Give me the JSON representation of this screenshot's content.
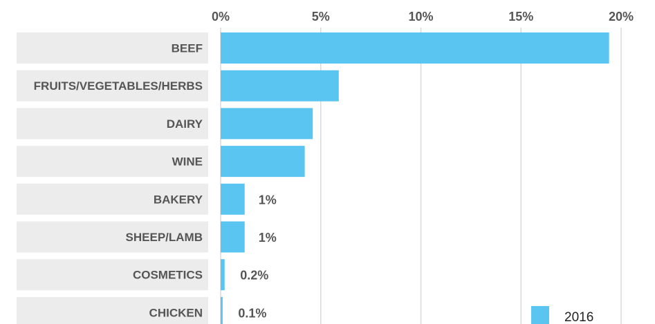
{
  "chart_data": {
    "type": "bar",
    "orientation": "horizontal",
    "categories": [
      "BEEF",
      "FRUITS/VEGETABLES/HERBS",
      "DAIRY",
      "WINE",
      "BAKERY",
      "SHEEP/LAMB",
      "COSMETICS",
      "CHICKEN"
    ],
    "series": [
      {
        "name": "2016",
        "values": [
          19.4,
          5.9,
          4.6,
          4.2,
          1.2,
          1.2,
          0.2,
          0.1
        ],
        "data_labels": [
          "",
          "",
          "",
          "",
          "1%",
          "1%",
          "0.2%",
          "0.1%"
        ]
      }
    ],
    "x_ticks": [
      0,
      5,
      10,
      15,
      20
    ],
    "x_tick_labels": [
      "0%",
      "5%",
      "10%",
      "15%",
      "20%"
    ],
    "xlim": [
      0,
      20
    ],
    "grid": true,
    "legend": "bottom-right",
    "colors": {
      "bar": "#5bc5f2",
      "label_band": "#ececec",
      "grid": "#d9d9d9",
      "text": "#555555"
    }
  }
}
